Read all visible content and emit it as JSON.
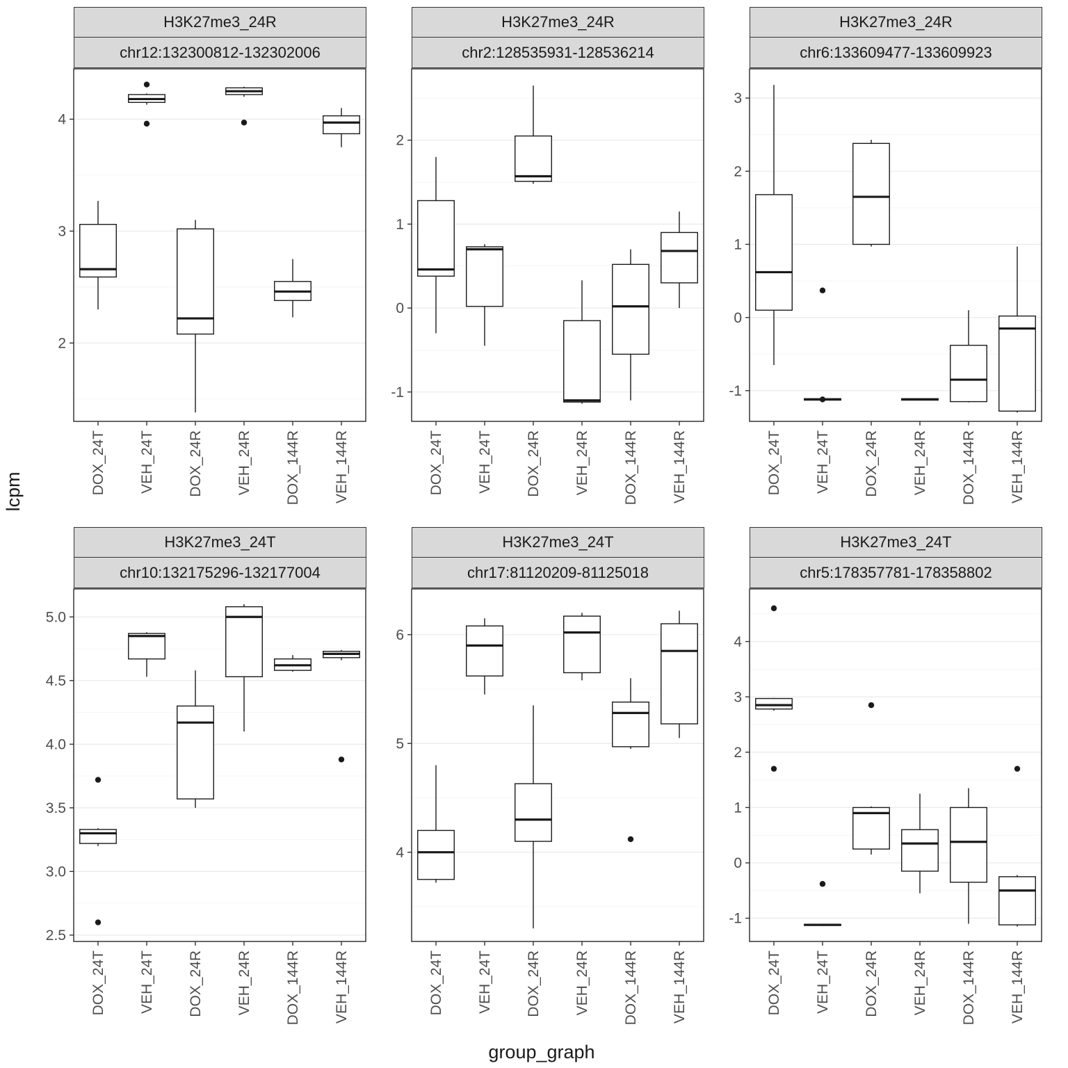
{
  "style": {
    "strip_bg": "#d9d9d9",
    "panel_border": "#333333",
    "grid_major": "#ebebeb",
    "grid_minor": "#f4f4f4",
    "box_stroke": "#1a1a1a",
    "tick_label_color": "#4d4d4d"
  },
  "chart_data": {
    "type": "boxplot",
    "title": "",
    "ylabel": "lcpm",
    "xlabel": "group_graph",
    "legend": "none",
    "categories": [
      "DOX_24T",
      "VEH_24T",
      "DOX_24R",
      "VEH_24R",
      "DOX_144R",
      "VEH_144R"
    ],
    "facets": [
      {
        "strip1": "H3K27me3_24R",
        "strip2": "chr12:132300812-132302006",
        "ylim": [
          1.3,
          4.45
        ],
        "yticks": [
          "2",
          "3",
          "4"
        ],
        "boxes": [
          {
            "low": 2.3,
            "q1": 2.59,
            "med": 2.66,
            "q3": 3.06,
            "high": 3.27,
            "outliers": []
          },
          {
            "low": 4.13,
            "q1": 4.15,
            "med": 4.18,
            "q3": 4.22,
            "high": 4.23,
            "outliers": [
              4.31,
              3.96
            ]
          },
          {
            "low": 1.38,
            "q1": 2.08,
            "med": 2.22,
            "q3": 3.02,
            "high": 3.1,
            "outliers": []
          },
          {
            "low": 4.2,
            "q1": 4.22,
            "med": 4.25,
            "q3": 4.28,
            "high": 4.29,
            "outliers": [
              3.97
            ]
          },
          {
            "low": 2.23,
            "q1": 2.38,
            "med": 2.46,
            "q3": 2.55,
            "high": 2.75,
            "outliers": []
          },
          {
            "low": 3.75,
            "q1": 3.87,
            "med": 3.97,
            "q3": 4.03,
            "high": 4.1,
            "outliers": []
          }
        ]
      },
      {
        "strip1": "H3K27me3_24R",
        "strip2": "chr2:128535931-128536214",
        "ylim": [
          -1.35,
          2.85
        ],
        "yticks": [
          "-1",
          "0",
          "1",
          "2"
        ],
        "boxes": [
          {
            "low": -0.3,
            "q1": 0.38,
            "med": 0.46,
            "q3": 1.28,
            "high": 1.8,
            "outliers": []
          },
          {
            "low": -0.45,
            "q1": 0.02,
            "med": 0.7,
            "q3": 0.73,
            "high": 0.76,
            "outliers": []
          },
          {
            "low": 1.48,
            "q1": 1.51,
            "med": 1.57,
            "q3": 2.05,
            "high": 2.65,
            "outliers": []
          },
          {
            "low": -1.14,
            "q1": -1.12,
            "med": -1.1,
            "q3": -0.15,
            "high": 0.33,
            "outliers": []
          },
          {
            "low": -1.1,
            "q1": -0.55,
            "med": 0.02,
            "q3": 0.52,
            "high": 0.7,
            "outliers": []
          },
          {
            "low": 0.0,
            "q1": 0.3,
            "med": 0.68,
            "q3": 0.9,
            "high": 1.15,
            "outliers": []
          }
        ]
      },
      {
        "strip1": "H3K27me3_24R",
        "strip2": "chr6:133609477-133609923",
        "ylim": [
          -1.42,
          3.4
        ],
        "yticks": [
          "-1",
          "0",
          "1",
          "2",
          "3"
        ],
        "boxes": [
          {
            "low": -0.65,
            "q1": 0.1,
            "med": 0.62,
            "q3": 1.68,
            "high": 3.18,
            "outliers": []
          },
          {
            "low": -1.13,
            "q1": -1.13,
            "med": -1.12,
            "q3": -1.11,
            "high": -1.11,
            "outliers": [
              0.37,
              -1.12
            ]
          },
          {
            "low": 0.97,
            "q1": 1.0,
            "med": 1.65,
            "q3": 2.38,
            "high": 2.43,
            "outliers": []
          },
          {
            "low": -1.13,
            "q1": -1.13,
            "med": -1.12,
            "q3": -1.11,
            "high": -1.11,
            "outliers": []
          },
          {
            "low": -1.16,
            "q1": -1.15,
            "med": -0.85,
            "q3": -0.38,
            "high": 0.1,
            "outliers": []
          },
          {
            "low": -1.3,
            "q1": -1.28,
            "med": -0.15,
            "q3": 0.02,
            "high": 0.97,
            "outliers": []
          }
        ]
      },
      {
        "strip1": "H3K27me3_24T",
        "strip2": "chr10:132175296-132177004",
        "ylim": [
          2.45,
          5.22
        ],
        "yticks": [
          "2.5",
          "3.0",
          "3.5",
          "4.0",
          "4.5",
          "5.0"
        ],
        "boxes": [
          {
            "low": 3.2,
            "q1": 3.22,
            "med": 3.3,
            "q3": 3.33,
            "high": 3.34,
            "outliers": [
              3.72,
              2.6
            ]
          },
          {
            "low": 4.53,
            "q1": 4.67,
            "med": 4.85,
            "q3": 4.87,
            "high": 4.88,
            "outliers": []
          },
          {
            "low": 3.5,
            "q1": 3.57,
            "med": 4.17,
            "q3": 4.3,
            "high": 4.58,
            "outliers": []
          },
          {
            "low": 4.1,
            "q1": 4.53,
            "med": 5.0,
            "q3": 5.08,
            "high": 5.1,
            "outliers": []
          },
          {
            "low": 4.57,
            "q1": 4.58,
            "med": 4.62,
            "q3": 4.67,
            "high": 4.7,
            "outliers": []
          },
          {
            "low": 4.66,
            "q1": 4.68,
            "med": 4.71,
            "q3": 4.73,
            "high": 4.74,
            "outliers": [
              3.88
            ]
          }
        ]
      },
      {
        "strip1": "H3K27me3_24T",
        "strip2": "chr17:81120209-81125018",
        "ylim": [
          3.18,
          6.42
        ],
        "yticks": [
          "4",
          "5",
          "6"
        ],
        "boxes": [
          {
            "low": 3.72,
            "q1": 3.75,
            "med": 4.0,
            "q3": 4.2,
            "high": 4.8,
            "outliers": []
          },
          {
            "low": 5.45,
            "q1": 5.62,
            "med": 5.9,
            "q3": 6.08,
            "high": 6.15,
            "outliers": []
          },
          {
            "low": 3.3,
            "q1": 4.1,
            "med": 4.3,
            "q3": 4.63,
            "high": 5.35,
            "outliers": []
          },
          {
            "low": 5.58,
            "q1": 5.65,
            "med": 6.02,
            "q3": 6.17,
            "high": 6.2,
            "outliers": []
          },
          {
            "low": 4.95,
            "q1": 4.97,
            "med": 5.28,
            "q3": 5.38,
            "high": 5.6,
            "outliers": [
              4.12
            ]
          },
          {
            "low": 5.05,
            "q1": 5.18,
            "med": 5.85,
            "q3": 6.1,
            "high": 6.22,
            "outliers": []
          }
        ]
      },
      {
        "strip1": "H3K27me3_24T",
        "strip2": "chr5:178357781-178358802",
        "ylim": [
          -1.42,
          4.95
        ],
        "yticks": [
          "-1",
          "0",
          "1",
          "2",
          "3",
          "4"
        ],
        "boxes": [
          {
            "low": 2.75,
            "q1": 2.78,
            "med": 2.85,
            "q3": 2.97,
            "high": 2.98,
            "outliers": [
              4.6,
              1.7
            ]
          },
          {
            "low": -1.14,
            "q1": -1.13,
            "med": -1.12,
            "q3": -1.11,
            "high": -1.1,
            "outliers": [
              -0.38
            ]
          },
          {
            "low": 0.15,
            "q1": 0.25,
            "med": 0.9,
            "q3": 1.0,
            "high": 1.02,
            "outliers": [
              2.85
            ]
          },
          {
            "low": -0.55,
            "q1": -0.15,
            "med": 0.35,
            "q3": 0.6,
            "high": 1.25,
            "outliers": []
          },
          {
            "low": -1.1,
            "q1": -0.35,
            "med": 0.38,
            "q3": 1.0,
            "high": 1.35,
            "outliers": []
          },
          {
            "low": -1.15,
            "q1": -1.12,
            "med": -0.5,
            "q3": -0.25,
            "high": -0.22,
            "outliers": [
              1.7
            ]
          }
        ]
      }
    ]
  }
}
